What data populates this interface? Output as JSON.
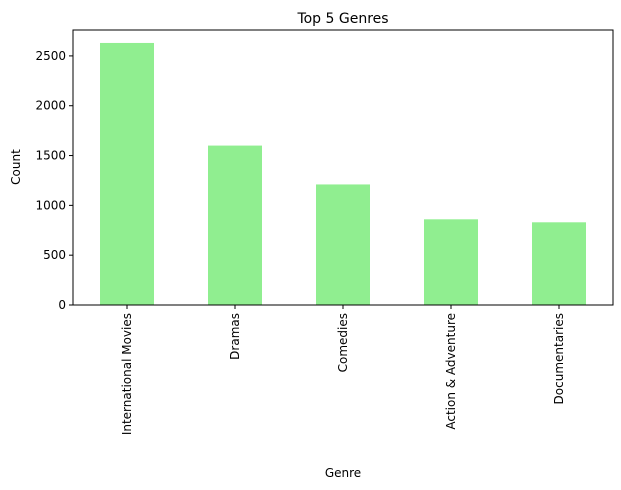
{
  "chart_data": {
    "type": "bar",
    "title": "Top 5 Genres",
    "xlabel": "Genre",
    "ylabel": "Count",
    "categories": [
      "International Movies",
      "Dramas",
      "Comedies",
      "Action & Adventure",
      "Documentaries"
    ],
    "values": [
      2630,
      1600,
      1210,
      860,
      830
    ],
    "ylim": [
      0,
      2760
    ],
    "yticks": [
      0,
      500,
      1000,
      1500,
      2000,
      2500
    ],
    "bar_color": "#90ee90",
    "grid": false,
    "legend": "none"
  }
}
